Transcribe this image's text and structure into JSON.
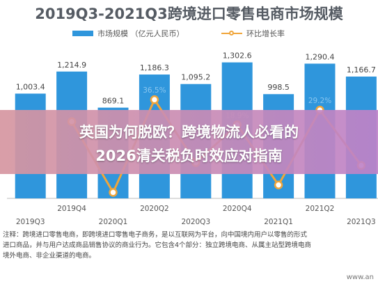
{
  "title": "2019Q3-2021Q3跨境进口零售电商市场规模",
  "legend": {
    "bar_label": "市场规模 （亿元人民币）",
    "line_label": "环比增长率"
  },
  "colors": {
    "bar": "#2f96dc",
    "line": "#f0a53a",
    "point_fill": "#ffffff"
  },
  "overlay": {
    "line1": "英国为何脱欧？跨境物流人必看的",
    "line2": "2026清关税负时效应对指南"
  },
  "notes": [
    "注释：跨境进口零售电商，即跨境进口零售电子商务，是以互联网为平台，向中国境内用户以零售的形式",
    "进口商品，并与用户达成商品销售协议的商业行为。它包含4个部分：独立跨境电商、从属主站型跨境电商",
    "境外电商、非企业渠道的电商。"
  ],
  "watermark": "www.an",
  "chart_data": {
    "type": "bar",
    "categories": [
      "2019Q3",
      "2019Q4",
      "2020Q1",
      "2020Q2",
      "2020Q3",
      "2020Q4",
      "2021Q1",
      "2021Q2",
      "2021Q3"
    ],
    "series": [
      {
        "name": "市场规模 （亿元人民币）",
        "type": "bar",
        "values": [
          1003.4,
          1214.9,
          869.1,
          1186.3,
          1095.2,
          1302.6,
          998.5,
          1290.4,
          1166.7
        ],
        "labels": [
          "1,003.4",
          "1,214.9",
          "869.1",
          "1,186.3",
          "1,095.2",
          "1,302.6",
          "998.5",
          "1,290.4",
          "1,166.7"
        ]
      },
      {
        "name": "环比增长率",
        "type": "line",
        "values": [
          null,
          21.1,
          -28.5,
          36.5,
          -7.7,
          18.9,
          -23.3,
          29.2,
          -9.6
        ],
        "labels": [
          "",
          "",
          "",
          "36.5%",
          "",
          "18.9%",
          "",
          "29.2%",
          ""
        ]
      }
    ],
    "bar_ylim": [
      0,
      1500
    ],
    "line_ylim": [
      -40,
      60
    ],
    "grid": false
  }
}
